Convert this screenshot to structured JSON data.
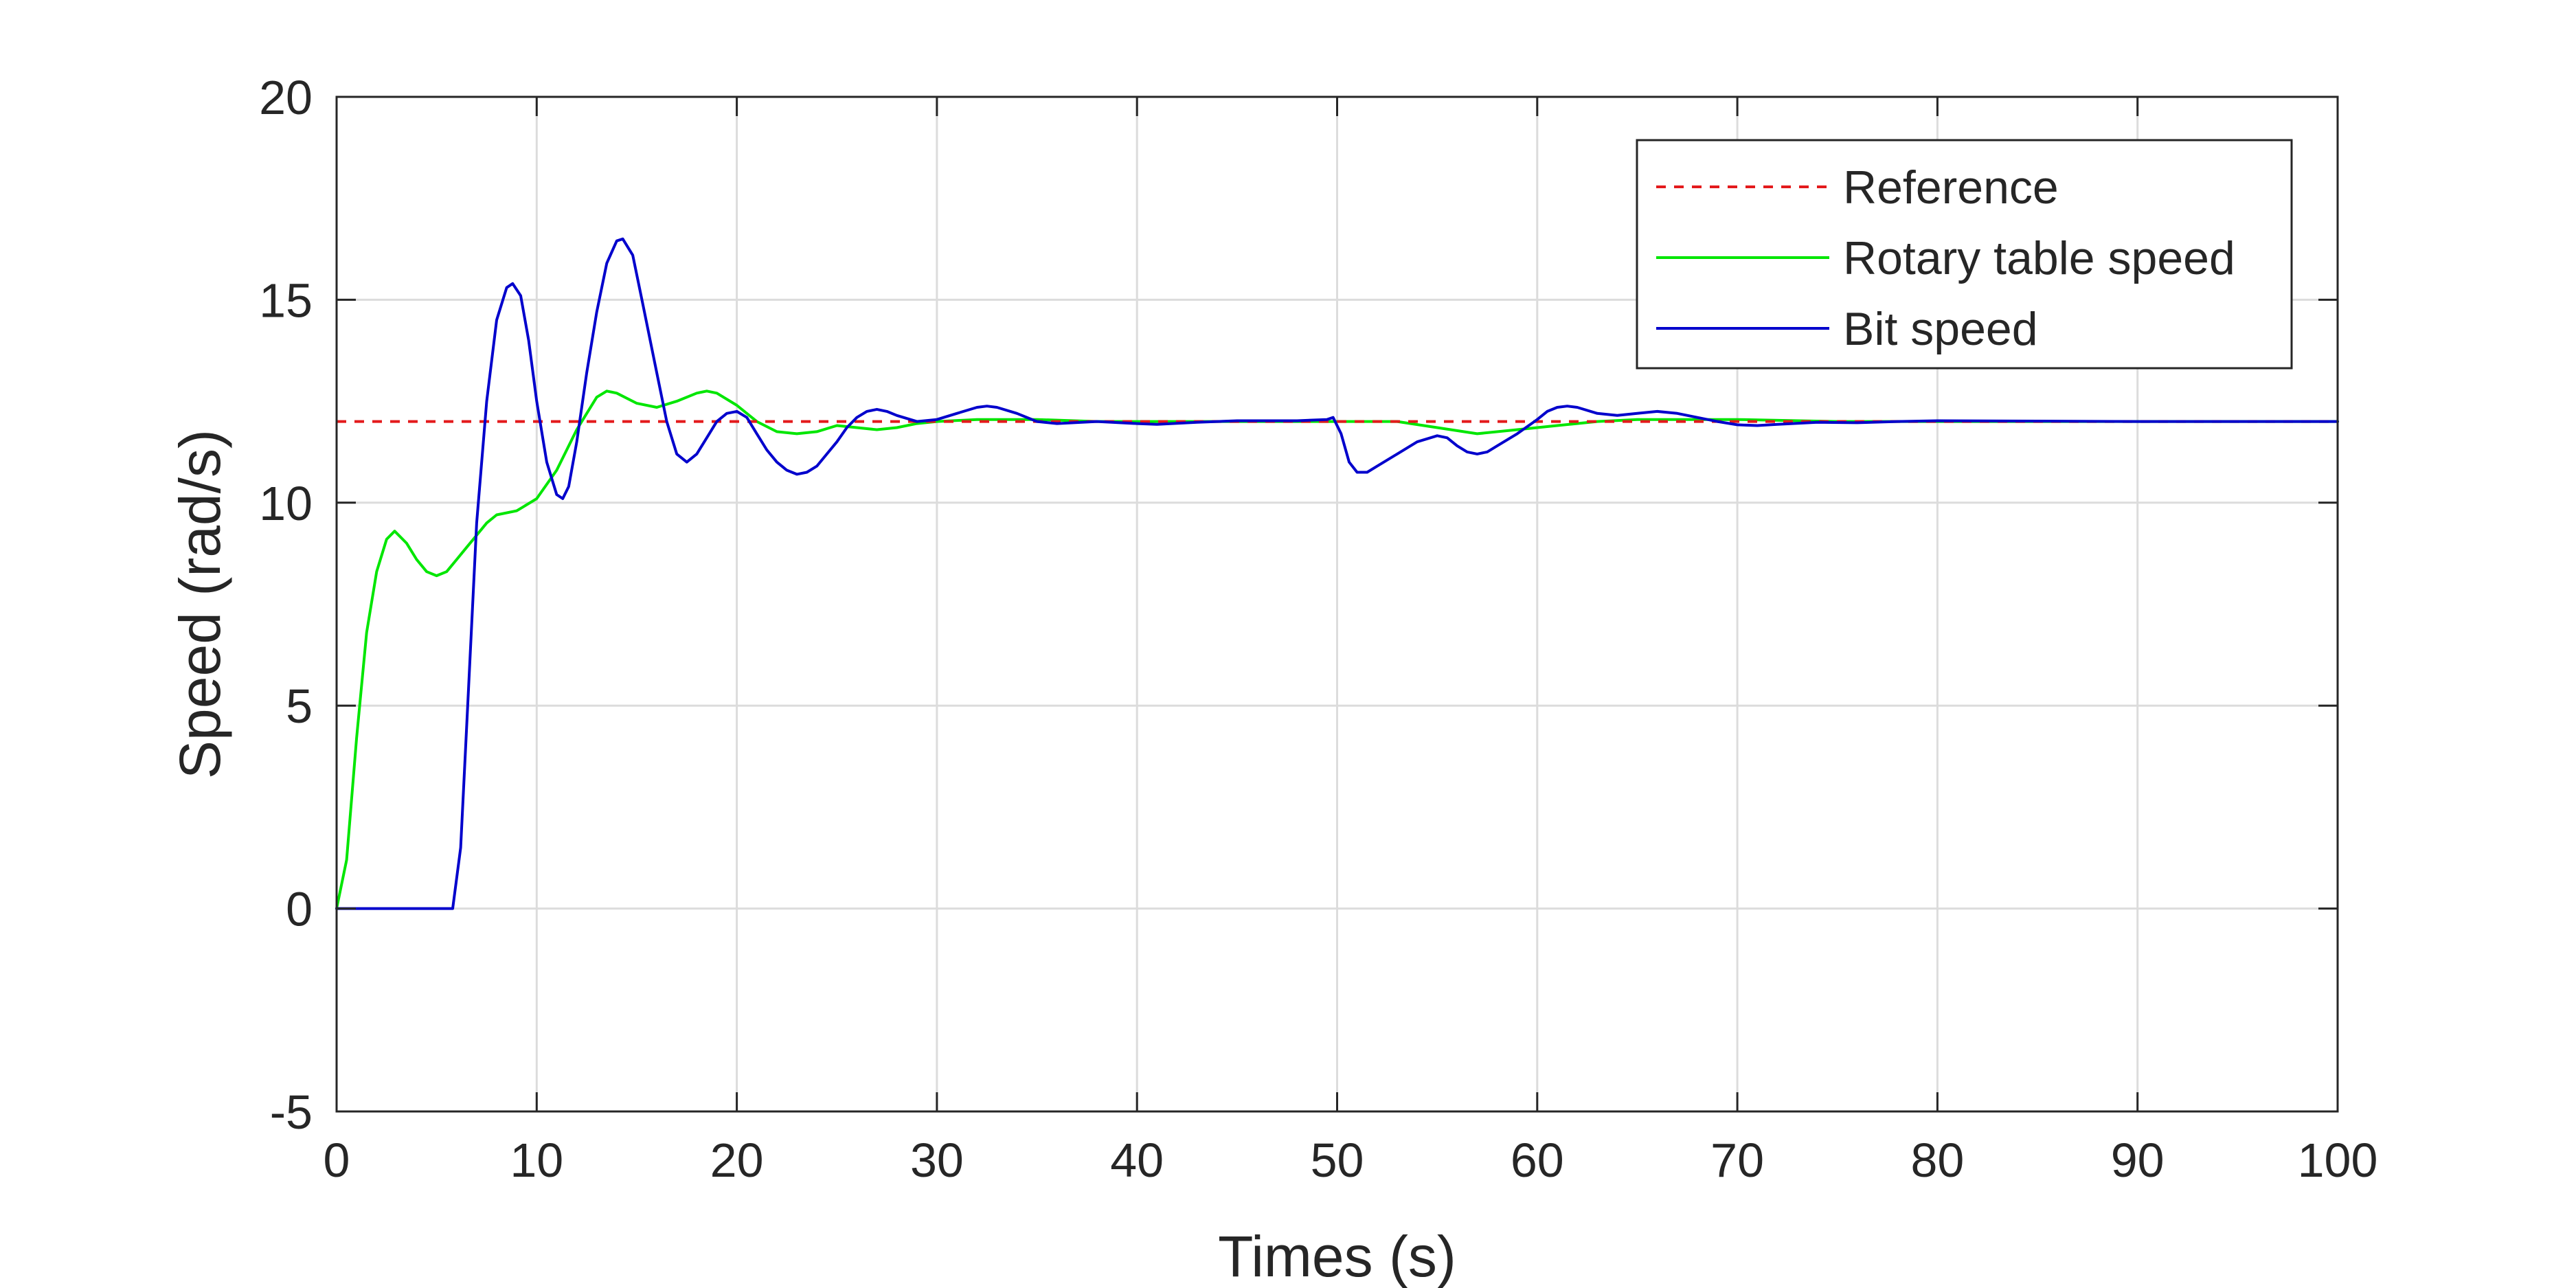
{
  "chart_data": {
    "type": "line",
    "title": "",
    "xlabel": "Times (s)",
    "ylabel": "Speed (rad/s)",
    "xlim": [
      0,
      100
    ],
    "ylim": [
      -5,
      20
    ],
    "xticks": [
      0,
      10,
      20,
      30,
      40,
      50,
      60,
      70,
      80,
      90,
      100
    ],
    "yticks": [
      -5,
      0,
      5,
      10,
      15,
      20
    ],
    "grid": true,
    "legend_position": "top-right",
    "series": [
      {
        "name": "Reference",
        "color": "#e31a1c",
        "style": "dashed",
        "points": [
          [
            0,
            12
          ],
          [
            100,
            12
          ]
        ]
      },
      {
        "name": "Rotary table speed",
        "color": "#00e600",
        "style": "solid",
        "points": [
          [
            0,
            0
          ],
          [
            0.5,
            1.2
          ],
          [
            1,
            4.2
          ],
          [
            1.5,
            6.8
          ],
          [
            2,
            8.3
          ],
          [
            2.5,
            9.1
          ],
          [
            2.9,
            9.3
          ],
          [
            3.5,
            9.0
          ],
          [
            4,
            8.6
          ],
          [
            4.5,
            8.3
          ],
          [
            5,
            8.2
          ],
          [
            5.5,
            8.3
          ],
          [
            6,
            8.6
          ],
          [
            6.5,
            8.9
          ],
          [
            7,
            9.2
          ],
          [
            7.5,
            9.5
          ],
          [
            8,
            9.7
          ],
          [
            9,
            9.8
          ],
          [
            10,
            10.1
          ],
          [
            11,
            10.8
          ],
          [
            12,
            11.8
          ],
          [
            13,
            12.6
          ],
          [
            13.5,
            12.75
          ],
          [
            14,
            12.7
          ],
          [
            15,
            12.45
          ],
          [
            16,
            12.35
          ],
          [
            17,
            12.5
          ],
          [
            18,
            12.7
          ],
          [
            18.5,
            12.75
          ],
          [
            19,
            12.7
          ],
          [
            20,
            12.4
          ],
          [
            21,
            12.0
          ],
          [
            22,
            11.75
          ],
          [
            23,
            11.7
          ],
          [
            24,
            11.75
          ],
          [
            25,
            11.9
          ],
          [
            26,
            11.85
          ],
          [
            27,
            11.8
          ],
          [
            28,
            11.85
          ],
          [
            29,
            11.95
          ],
          [
            30,
            12.0
          ],
          [
            32,
            12.05
          ],
          [
            35,
            12.05
          ],
          [
            38,
            12.0
          ],
          [
            40,
            12.0
          ],
          [
            45,
            12.0
          ],
          [
            49.5,
            12.0
          ],
          [
            50,
            12.0
          ],
          [
            51,
            12.0
          ],
          [
            53,
            12.0
          ],
          [
            55,
            11.85
          ],
          [
            57,
            11.7
          ],
          [
            59,
            11.8
          ],
          [
            61,
            11.9
          ],
          [
            63,
            12.0
          ],
          [
            65,
            12.05
          ],
          [
            67,
            12.05
          ],
          [
            70,
            12.05
          ],
          [
            75,
            12.0
          ],
          [
            80,
            12.0
          ],
          [
            100,
            12.0
          ]
        ]
      },
      {
        "name": "Bit speed",
        "color": "#0000cc",
        "style": "solid",
        "points": [
          [
            0,
            0
          ],
          [
            5.8,
            0
          ],
          [
            6.2,
            1.5
          ],
          [
            6.6,
            5.5
          ],
          [
            7,
            9.5
          ],
          [
            7.5,
            12.5
          ],
          [
            8,
            14.5
          ],
          [
            8.5,
            15.3
          ],
          [
            8.8,
            15.4
          ],
          [
            9.2,
            15.1
          ],
          [
            9.6,
            14.0
          ],
          [
            10,
            12.5
          ],
          [
            10.5,
            11.0
          ],
          [
            11,
            10.2
          ],
          [
            11.3,
            10.1
          ],
          [
            11.6,
            10.4
          ],
          [
            12,
            11.5
          ],
          [
            12.5,
            13.2
          ],
          [
            13,
            14.7
          ],
          [
            13.5,
            15.9
          ],
          [
            14,
            16.45
          ],
          [
            14.3,
            16.5
          ],
          [
            14.8,
            16.1
          ],
          [
            15.3,
            14.9
          ],
          [
            16,
            13.2
          ],
          [
            16.5,
            12.0
          ],
          [
            17,
            11.2
          ],
          [
            17.5,
            11.0
          ],
          [
            18,
            11.2
          ],
          [
            18.5,
            11.6
          ],
          [
            19,
            12.0
          ],
          [
            19.5,
            12.2
          ],
          [
            20,
            12.25
          ],
          [
            20.5,
            12.1
          ],
          [
            21,
            11.7
          ],
          [
            21.5,
            11.3
          ],
          [
            22,
            11.0
          ],
          [
            22.5,
            10.8
          ],
          [
            23,
            10.7
          ],
          [
            23.5,
            10.75
          ],
          [
            24,
            10.9
          ],
          [
            24.5,
            11.2
          ],
          [
            25,
            11.5
          ],
          [
            25.5,
            11.85
          ],
          [
            26,
            12.1
          ],
          [
            26.5,
            12.25
          ],
          [
            27,
            12.3
          ],
          [
            27.5,
            12.25
          ],
          [
            28,
            12.15
          ],
          [
            29,
            12.0
          ],
          [
            30,
            12.05
          ],
          [
            31,
            12.2
          ],
          [
            32,
            12.35
          ],
          [
            32.5,
            12.38
          ],
          [
            33,
            12.35
          ],
          [
            34,
            12.2
          ],
          [
            35,
            12.0
          ],
          [
            36,
            11.95
          ],
          [
            38,
            12.0
          ],
          [
            40,
            11.95
          ],
          [
            41,
            11.93
          ],
          [
            43,
            11.98
          ],
          [
            45,
            12.02
          ],
          [
            48,
            12.02
          ],
          [
            49.5,
            12.05
          ],
          [
            49.8,
            12.1
          ],
          [
            50.2,
            11.7
          ],
          [
            50.6,
            11.0
          ],
          [
            51,
            10.75
          ],
          [
            51.5,
            10.75
          ],
          [
            52,
            10.9
          ],
          [
            53,
            11.2
          ],
          [
            54,
            11.5
          ],
          [
            55,
            11.65
          ],
          [
            55.5,
            11.6
          ],
          [
            56,
            11.4
          ],
          [
            56.5,
            11.25
          ],
          [
            57,
            11.2
          ],
          [
            57.5,
            11.25
          ],
          [
            58,
            11.4
          ],
          [
            59,
            11.7
          ],
          [
            60,
            12.05
          ],
          [
            60.5,
            12.25
          ],
          [
            61,
            12.35
          ],
          [
            61.5,
            12.38
          ],
          [
            62,
            12.35
          ],
          [
            63,
            12.2
          ],
          [
            64,
            12.15
          ],
          [
            65,
            12.2
          ],
          [
            66,
            12.25
          ],
          [
            67,
            12.2
          ],
          [
            68,
            12.1
          ],
          [
            69,
            12.0
          ],
          [
            70,
            11.92
          ],
          [
            71,
            11.9
          ],
          [
            72,
            11.93
          ],
          [
            74,
            11.98
          ],
          [
            76,
            11.97
          ],
          [
            78,
            12.0
          ],
          [
            80,
            12.02
          ],
          [
            85,
            12.01
          ],
          [
            90,
            12.0
          ],
          [
            100,
            12.0
          ]
        ]
      }
    ]
  }
}
